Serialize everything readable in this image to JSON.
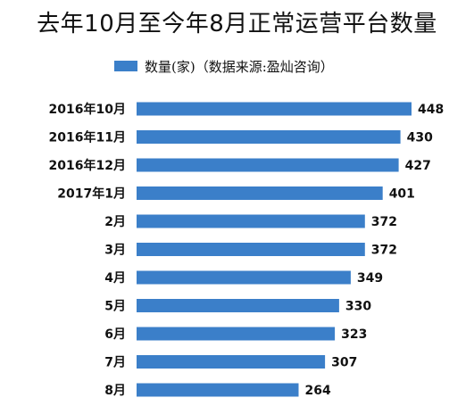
{
  "colors": {
    "bar": "#3b7fc9",
    "text": "#111111",
    "background": "#ffffff"
  },
  "chart_data": {
    "type": "bar",
    "orientation": "horizontal",
    "title": "去年10月至今年8月正常运营平台数量",
    "legend": "数量(家)（数据来源:盈灿咨询）",
    "legend_position": "top",
    "categories": [
      "2016年10月",
      "2016年11月",
      "2016年12月",
      "2017年1月",
      "2月",
      "3月",
      "4月",
      "5月",
      "6月",
      "7月",
      "8月"
    ],
    "values": [
      448,
      430,
      427,
      401,
      372,
      372,
      349,
      330,
      323,
      307,
      264
    ],
    "xlim": [
      0,
      448
    ],
    "grid": false
  }
}
